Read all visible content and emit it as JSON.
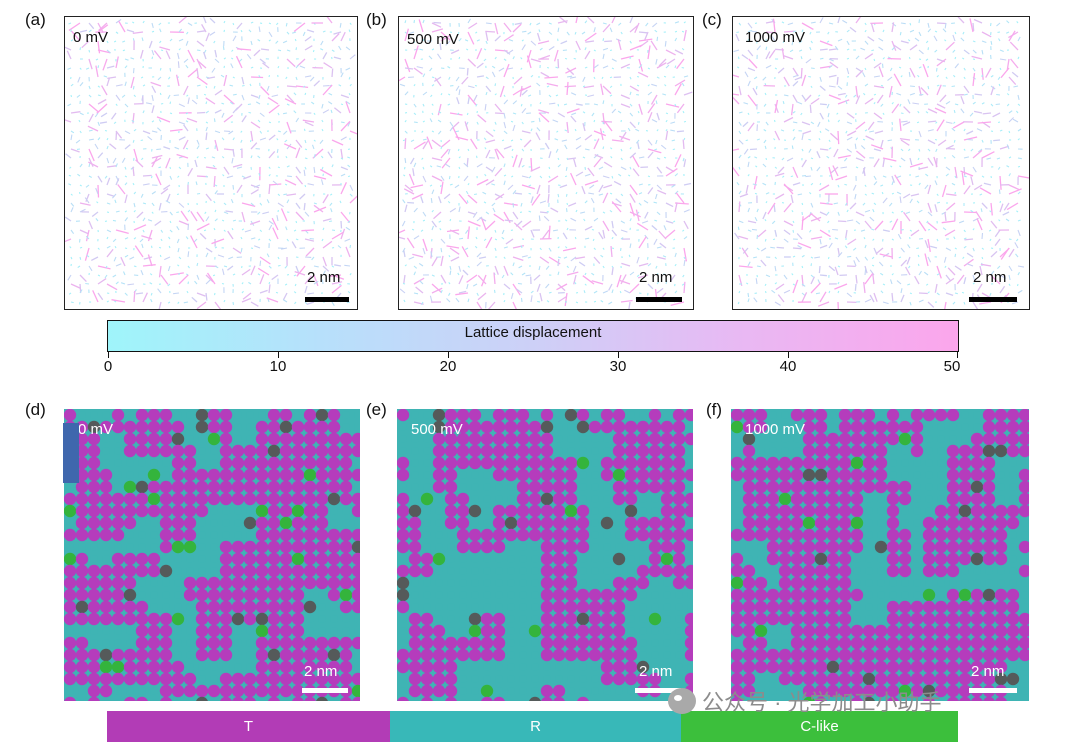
{
  "top_row": {
    "panels": [
      {
        "label": "(a)",
        "voltage": "0 mV",
        "scale": "2 nm"
      },
      {
        "label": "(b)",
        "voltage": "500 mV",
        "scale": "2 nm"
      },
      {
        "label": "(c)",
        "voltage": "1000 mV",
        "scale": "2 nm"
      }
    ]
  },
  "colorbar": {
    "title": "Lattice displacement",
    "ticks": [
      "0",
      "10",
      "20",
      "30",
      "40",
      "50"
    ],
    "colors": {
      "low": "#9ff5fa",
      "high": "#fba6ec"
    }
  },
  "bottom_row": {
    "panels": [
      {
        "label": "(d)",
        "voltage": "0 mV",
        "scale": "2 nm"
      },
      {
        "label": "(e)",
        "voltage": "500 mV",
        "scale": "2 nm"
      },
      {
        "label": "(f)",
        "voltage": "1000 mV",
        "scale": "2 nm"
      }
    ]
  },
  "legend": {
    "items": [
      {
        "label": "T",
        "color": "#b23cb6"
      },
      {
        "label": "R",
        "color": "#38b8b8"
      },
      {
        "label": "C-like",
        "color": "#3cbf3c"
      }
    ]
  },
  "watermark": {
    "text": "公众号 · 光学加工小助手"
  }
}
